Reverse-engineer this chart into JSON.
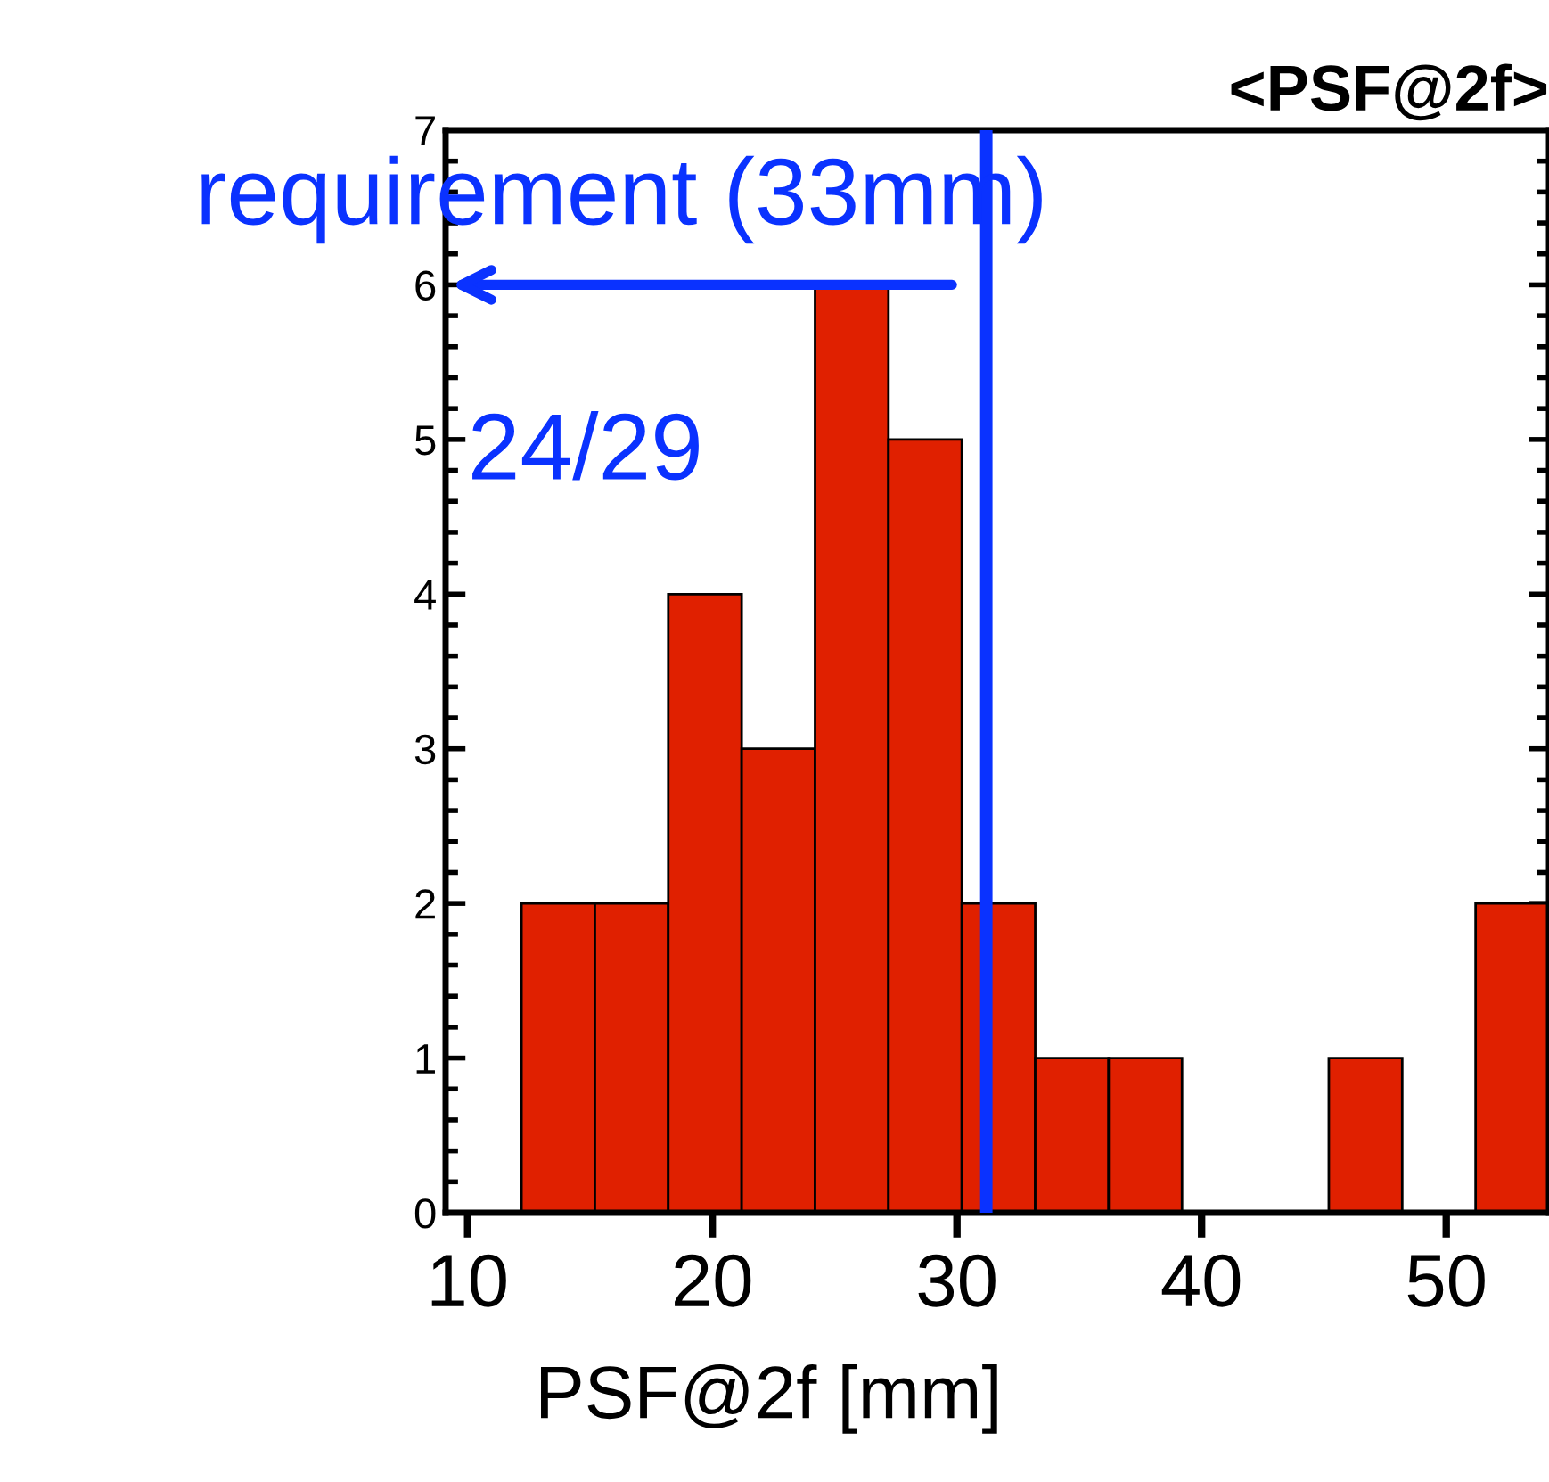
{
  "chart_data": {
    "type": "histogram",
    "title": "<PSF@2f>",
    "xlabel": "PSF@2f [mm]",
    "bins": [
      12.2,
      15.2,
      18.2,
      21.2,
      24.2,
      27.2,
      30.2,
      33.2,
      36.2,
      39.2,
      42.2,
      45.2,
      48.2,
      51.2,
      54.2
    ],
    "values": [
      2,
      2,
      4,
      3,
      6,
      5,
      2,
      1,
      1,
      0,
      0,
      1,
      0,
      2
    ],
    "color": "#e02000",
    "xlim": [
      9.1,
      54.2
    ],
    "xticks": [
      10,
      20,
      30,
      40,
      50
    ],
    "ylim": [
      0,
      7
    ],
    "yticks": [
      0,
      1,
      2,
      3,
      4,
      5,
      6,
      7
    ],
    "grid": false,
    "ref_lines": [
      {
        "axis": "x",
        "value": 31.2,
        "label": "requirement (33mm)",
        "color": "#0a32ff"
      }
    ],
    "annotations": [
      "24/29"
    ]
  }
}
